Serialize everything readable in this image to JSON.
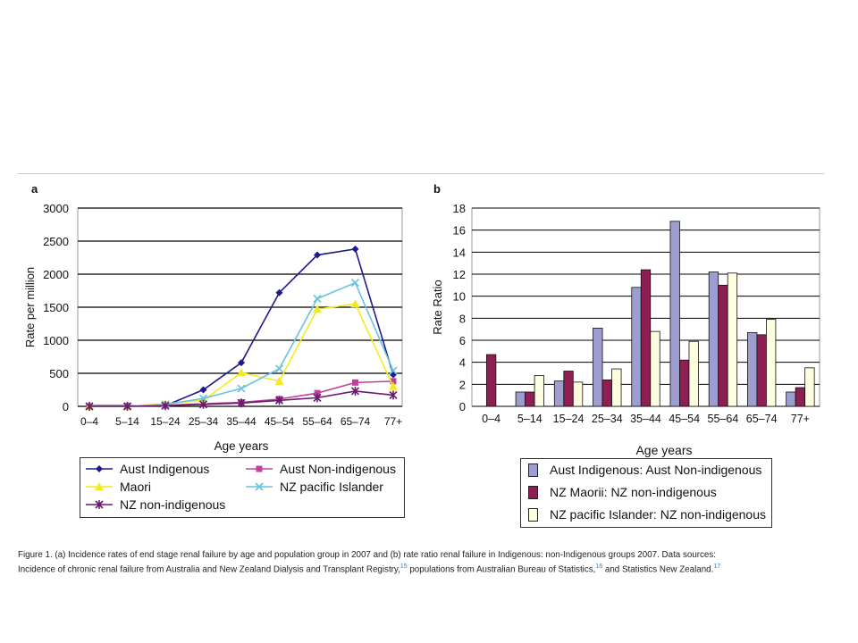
{
  "figure": {
    "caption_line1": "Figure 1. (a) Incidence rates of end stage renal failure by age and population group in 2007 and (b) rate ratio renal failure in Indigenous: non-Indigenous groups 2007. Data sources:",
    "caption_line2": {
      "part1": "Incidence of chronic renal failure from Australia and New Zealand Dialysis and Transplant Registry,",
      "ref1": "15",
      "part2": " populations from Australian Bureau of Statistics,",
      "ref2": "16",
      "part3": " and Statistics New Zealand.",
      "ref3": "17"
    }
  },
  "chart_data": [
    {
      "panel_label": "a",
      "type": "line",
      "categories": [
        "0–4",
        "5–14",
        "15–24",
        "25–34",
        "35–44",
        "45–54",
        "55–64",
        "65–74",
        "77+"
      ],
      "xlabel": "Age years",
      "ylabel": "Rate per million",
      "ylim": [
        0,
        3000
      ],
      "yticks": [
        "0",
        "500",
        "1000",
        "1500",
        "2000",
        "2500",
        "3000"
      ],
      "grid": true,
      "legend_placement": "bottom",
      "series": [
        {
          "name": "Aust Indigenous",
          "color": "#1f1a8c",
          "marker": "diamond",
          "values": [
            10,
            10,
            10,
            250,
            660,
            1720,
            2290,
            2380,
            480
          ]
        },
        {
          "name": "Aust Non-indigenous",
          "color": "#c2409c",
          "marker": "square",
          "values": [
            0,
            5,
            15,
            40,
            60,
            110,
            200,
            360,
            380
          ]
        },
        {
          "name": "Maori",
          "color": "#f2ec1e",
          "marker": "triangle",
          "values": [
            0,
            0,
            40,
            90,
            510,
            380,
            1470,
            1550,
            300
          ]
        },
        {
          "name": "NZ pacific Islander",
          "color": "#67c3df",
          "marker": "x",
          "values": [
            0,
            0,
            30,
            120,
            270,
            570,
            1630,
            1870,
            540
          ]
        },
        {
          "name": "NZ non-indigenous",
          "color": "#6b1a6e",
          "marker": "star",
          "values": [
            0,
            0,
            10,
            30,
            50,
            90,
            130,
            230,
            170
          ]
        }
      ]
    },
    {
      "panel_label": "b",
      "type": "bar",
      "categories": [
        "0–4",
        "5–14",
        "15–24",
        "25–34",
        "35–44",
        "45–54",
        "55–64",
        "65–74",
        "77+"
      ],
      "xlabel": "Age years",
      "ylabel": "Rate Ratio",
      "ylim": [
        0,
        18
      ],
      "yticks": [
        "0",
        "2",
        "4",
        "6",
        "8",
        "10",
        "12",
        "14",
        "16",
        "18"
      ],
      "grid": true,
      "legend_placement": "bottom",
      "series": [
        {
          "name": "Aust Indigenous: Aust Non-indigenous",
          "color": "#9d9dcf",
          "values": [
            0,
            1.3,
            2.3,
            7.1,
            10.8,
            16.8,
            12.2,
            6.7,
            1.3
          ]
        },
        {
          "name": "NZ Maorii: NZ non-indigenous",
          "color": "#8e1f52",
          "values": [
            4.7,
            1.3,
            3.2,
            2.4,
            12.4,
            4.2,
            11.0,
            6.5,
            1.7
          ]
        },
        {
          "name": "NZ pacific Islander: NZ non-indigenous",
          "color": "#fdfde0",
          "values": [
            0,
            2.8,
            2.2,
            3.4,
            6.8,
            5.9,
            12.1,
            7.9,
            3.5
          ]
        }
      ]
    }
  ]
}
